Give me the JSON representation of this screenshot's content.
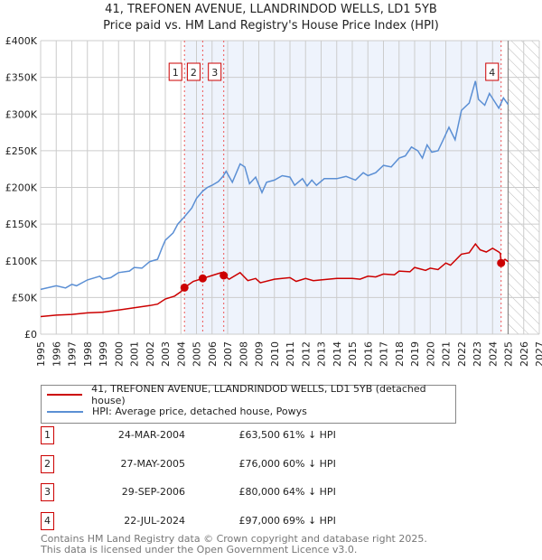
{
  "chart_data": {
    "type": "line",
    "title": "41, TREFONEN AVENUE, LLANDRINDOD WELLS, LD1 5YB",
    "subtitle": "Price paid vs. HM Land Registry's House Price Index (HPI)",
    "xlim": [
      1995,
      2027
    ],
    "ylim": [
      0,
      400000
    ],
    "x_ticks": [
      "1995",
      "1996",
      "1997",
      "1998",
      "1999",
      "2000",
      "2001",
      "2002",
      "2003",
      "2004",
      "2005",
      "2006",
      "2007",
      "2008",
      "2009",
      "2010",
      "2011",
      "2012",
      "2013",
      "2014",
      "2015",
      "2016",
      "2017",
      "2018",
      "2019",
      "2020",
      "2021",
      "2022",
      "2023",
      "2024",
      "2025",
      "2026",
      "2027"
    ],
    "y_ticks": [
      {
        "v": 0,
        "label": "£0"
      },
      {
        "v": 50000,
        "label": "£50K"
      },
      {
        "v": 100000,
        "label": "£100K"
      },
      {
        "v": 150000,
        "label": "£150K"
      },
      {
        "v": 200000,
        "label": "£200K"
      },
      {
        "v": 250000,
        "label": "£250K"
      },
      {
        "v": 300000,
        "label": "£300K"
      },
      {
        "v": 350000,
        "label": "£350K"
      },
      {
        "v": 400000,
        "label": "£400K"
      }
    ],
    "grid": true,
    "forecast_from": 2025,
    "series": [
      {
        "name": "41, TREFONEN AVENUE, LLANDRINDOD WELLS, LD1 5YB (detached house)",
        "color": "#cc0000",
        "points": [
          [
            1995,
            24000
          ],
          [
            1996,
            26000
          ],
          [
            1997,
            27000
          ],
          [
            1998,
            29000
          ],
          [
            1999,
            30000
          ],
          [
            2000,
            33000
          ],
          [
            2001,
            36000
          ],
          [
            2002,
            39000
          ],
          [
            2002.5,
            41000
          ],
          [
            2003,
            48000
          ],
          [
            2003.6,
            52000
          ],
          [
            2004,
            58000
          ],
          [
            2004.23,
            63500
          ],
          [
            2004.8,
            72000
          ],
          [
            2005.4,
            76000
          ],
          [
            2006,
            80000
          ],
          [
            2006.6,
            84000
          ],
          [
            2006.75,
            80000
          ],
          [
            2007.1,
            75000
          ],
          [
            2007.8,
            84000
          ],
          [
            2008.3,
            73000
          ],
          [
            2008.8,
            76000
          ],
          [
            2009.1,
            70000
          ],
          [
            2010,
            75000
          ],
          [
            2011,
            77000
          ],
          [
            2011.4,
            72000
          ],
          [
            2012,
            76000
          ],
          [
            2012.5,
            73000
          ],
          [
            2013,
            74000
          ],
          [
            2014,
            76000
          ],
          [
            2015,
            76000
          ],
          [
            2015.5,
            75000
          ],
          [
            2016,
            79000
          ],
          [
            2016.5,
            78000
          ],
          [
            2017,
            82000
          ],
          [
            2017.7,
            81000
          ],
          [
            2018,
            86000
          ],
          [
            2018.7,
            85000
          ],
          [
            2019,
            91000
          ],
          [
            2019.7,
            87000
          ],
          [
            2020,
            90000
          ],
          [
            2020.5,
            88000
          ],
          [
            2021,
            97000
          ],
          [
            2021.3,
            94000
          ],
          [
            2022,
            109000
          ],
          [
            2022.5,
            111000
          ],
          [
            2022.9,
            123000
          ],
          [
            2023.2,
            115000
          ],
          [
            2023.6,
            112000
          ],
          [
            2024,
            117000
          ],
          [
            2024.4,
            112000
          ],
          [
            2024.5,
            110000
          ],
          [
            2024.55,
            97000
          ],
          [
            2024.8,
            102000
          ],
          [
            2025,
            99000
          ]
        ]
      },
      {
        "name": "HPI: Average price, detached house, Powys",
        "color": "#5b8fd4",
        "points": [
          [
            1995,
            61000
          ],
          [
            1996,
            66000
          ],
          [
            1996.6,
            63000
          ],
          [
            1997,
            68000
          ],
          [
            1997.3,
            66000
          ],
          [
            1998,
            74000
          ],
          [
            1998.8,
            79000
          ],
          [
            1999,
            75000
          ],
          [
            1999.5,
            77000
          ],
          [
            2000,
            84000
          ],
          [
            2000.7,
            86000
          ],
          [
            2001,
            91000
          ],
          [
            2001.5,
            90000
          ],
          [
            2002,
            99000
          ],
          [
            2002.5,
            102000
          ],
          [
            2002.8,
            118000
          ],
          [
            2003,
            128000
          ],
          [
            2003.5,
            138000
          ],
          [
            2003.8,
            150000
          ],
          [
            2004.23,
            160000
          ],
          [
            2004.7,
            172000
          ],
          [
            2005,
            185000
          ],
          [
            2005.4,
            195000
          ],
          [
            2005.7,
            200000
          ],
          [
            2006,
            203000
          ],
          [
            2006.4,
            208000
          ],
          [
            2006.7,
            215000
          ],
          [
            2006.9,
            222000
          ],
          [
            2007.3,
            207000
          ],
          [
            2007.8,
            232000
          ],
          [
            2008.1,
            228000
          ],
          [
            2008.4,
            205000
          ],
          [
            2008.8,
            214000
          ],
          [
            2009.2,
            193000
          ],
          [
            2009.5,
            207000
          ],
          [
            2010,
            210000
          ],
          [
            2010.5,
            216000
          ],
          [
            2011,
            214000
          ],
          [
            2011.3,
            203000
          ],
          [
            2011.8,
            212000
          ],
          [
            2012.1,
            202000
          ],
          [
            2012.4,
            210000
          ],
          [
            2012.7,
            203000
          ],
          [
            2013.2,
            212000
          ],
          [
            2014,
            212000
          ],
          [
            2014.6,
            215000
          ],
          [
            2015.2,
            210000
          ],
          [
            2015.7,
            220000
          ],
          [
            2016,
            216000
          ],
          [
            2016.5,
            220000
          ],
          [
            2017,
            230000
          ],
          [
            2017.5,
            228000
          ],
          [
            2018,
            240000
          ],
          [
            2018.4,
            243000
          ],
          [
            2018.8,
            255000
          ],
          [
            2019.2,
            250000
          ],
          [
            2019.5,
            240000
          ],
          [
            2019.8,
            258000
          ],
          [
            2020.1,
            248000
          ],
          [
            2020.5,
            250000
          ],
          [
            2020.9,
            268000
          ],
          [
            2021.2,
            282000
          ],
          [
            2021.6,
            265000
          ],
          [
            2022,
            305000
          ],
          [
            2022.5,
            315000
          ],
          [
            2022.9,
            345000
          ],
          [
            2023.1,
            320000
          ],
          [
            2023.5,
            312000
          ],
          [
            2023.8,
            328000
          ],
          [
            2024.1,
            318000
          ],
          [
            2024.4,
            308000
          ],
          [
            2024.7,
            322000
          ],
          [
            2025,
            313000
          ]
        ]
      }
    ],
    "sales": [
      {
        "n": "1",
        "date": "24-MAR-2004",
        "x": 2004.23,
        "price": 63500,
        "price_label": "£63,500",
        "hpi": "61% ↓ HPI"
      },
      {
        "n": "2",
        "date": "27-MAY-2005",
        "x": 2005.4,
        "price": 76000,
        "price_label": "£76,000",
        "hpi": "60% ↓ HPI"
      },
      {
        "n": "3",
        "date": "29-SEP-2006",
        "x": 2006.75,
        "price": 80000,
        "price_label": "£80,000",
        "hpi": "64% ↓ HPI"
      },
      {
        "n": "4",
        "date": "22-JUL-2024",
        "x": 2024.55,
        "price": 97000,
        "price_label": "£97,000",
        "hpi": "69% ↓ HPI"
      }
    ]
  },
  "footer": {
    "line1": "Contains HM Land Registry data © Crown copyright and database right 2025.",
    "line2": "This data is licensed under the Open Government Licence v3.0."
  }
}
